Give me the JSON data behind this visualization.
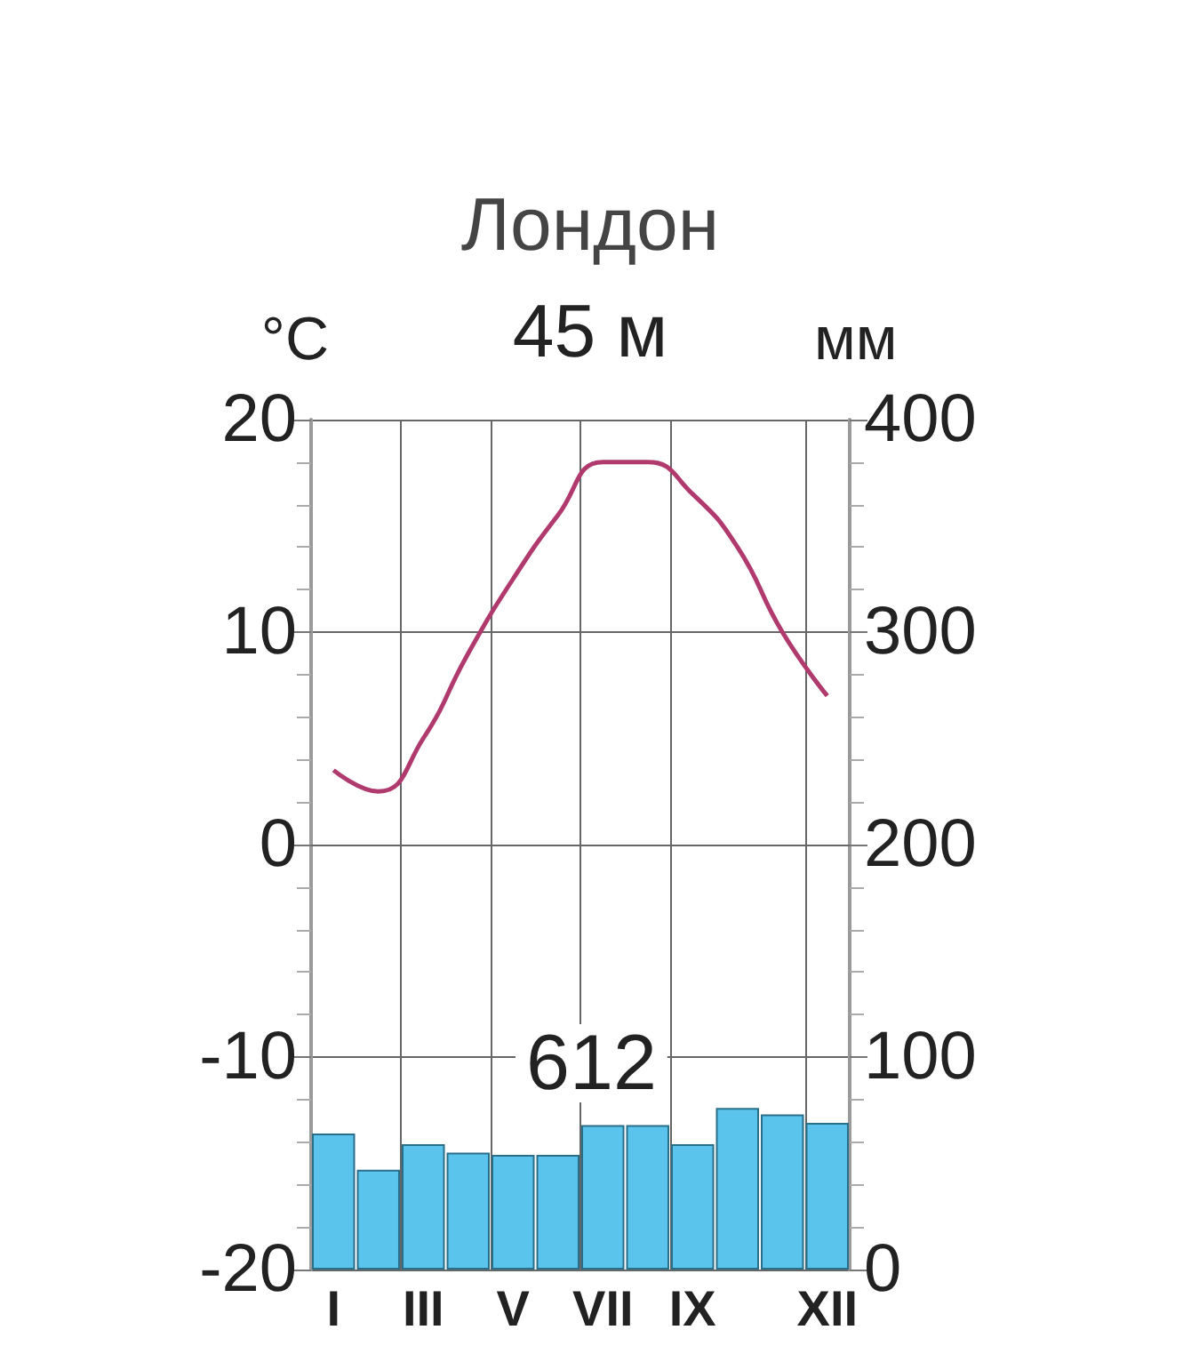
{
  "chart_data": {
    "type": "bar",
    "title": "Лондон",
    "subtitle": "45 м",
    "ylabel": "°C",
    "y2label": "мм",
    "categories": [
      "I",
      null,
      "III",
      null,
      "V",
      null,
      "VII",
      null,
      "IX",
      null,
      null,
      "XII"
    ],
    "series": [
      {
        "axis": "y2",
        "color": "#5bc4ec",
        "values": [
          64,
          47,
          59,
          55,
          54,
          54,
          68,
          68,
          59,
          76,
          73,
          69
        ]
      },
      {
        "type": "line",
        "color": "#b03a6e",
        "values": [
          3.5,
          2.5,
          5,
          9,
          12.5,
          15.5,
          18,
          18,
          16.5,
          14,
          10,
          7
        ]
      }
    ],
    "ylim": [
      -20,
      20
    ],
    "yticks": [
      -20,
      -10,
      0,
      10,
      20
    ],
    "y2lim": [
      0,
      400
    ],
    "y2ticks": [
      0,
      100,
      200,
      300,
      400
    ],
    "grid": true,
    "marker": "none",
    "annotations": [
      "612"
    ]
  }
}
